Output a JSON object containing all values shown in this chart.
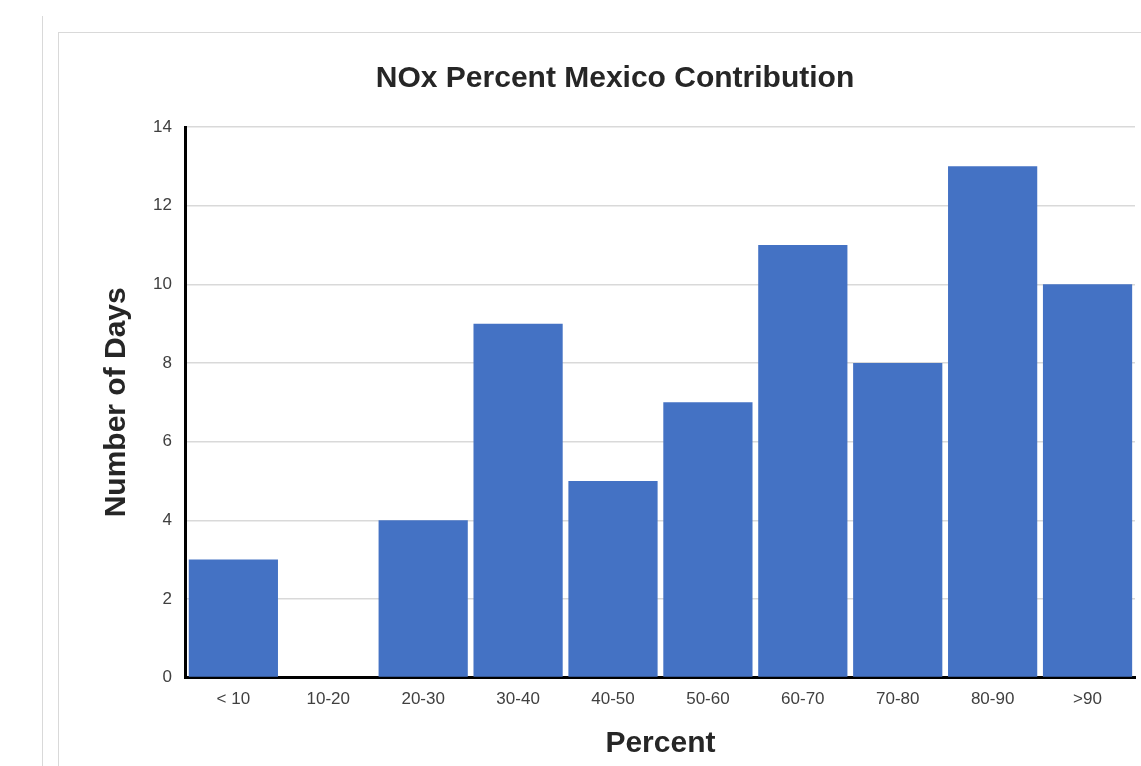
{
  "chart_data": {
    "type": "bar",
    "title": "NOx Percent Mexico Contribution",
    "xlabel": "Percent",
    "ylabel": "Number of Days",
    "categories": [
      "< 10",
      "10-20",
      "20-30",
      "30-40",
      "40-50",
      "50-60",
      "60-70",
      "70-80",
      "80-90",
      ">90"
    ],
    "values": [
      3,
      0,
      4,
      9,
      5,
      7,
      11,
      8,
      13,
      10
    ],
    "color": "#4472c4",
    "ylim": [
      0,
      14
    ],
    "yticks": [
      0,
      2,
      4,
      6,
      8,
      10,
      12,
      14
    ],
    "grid": "y"
  }
}
